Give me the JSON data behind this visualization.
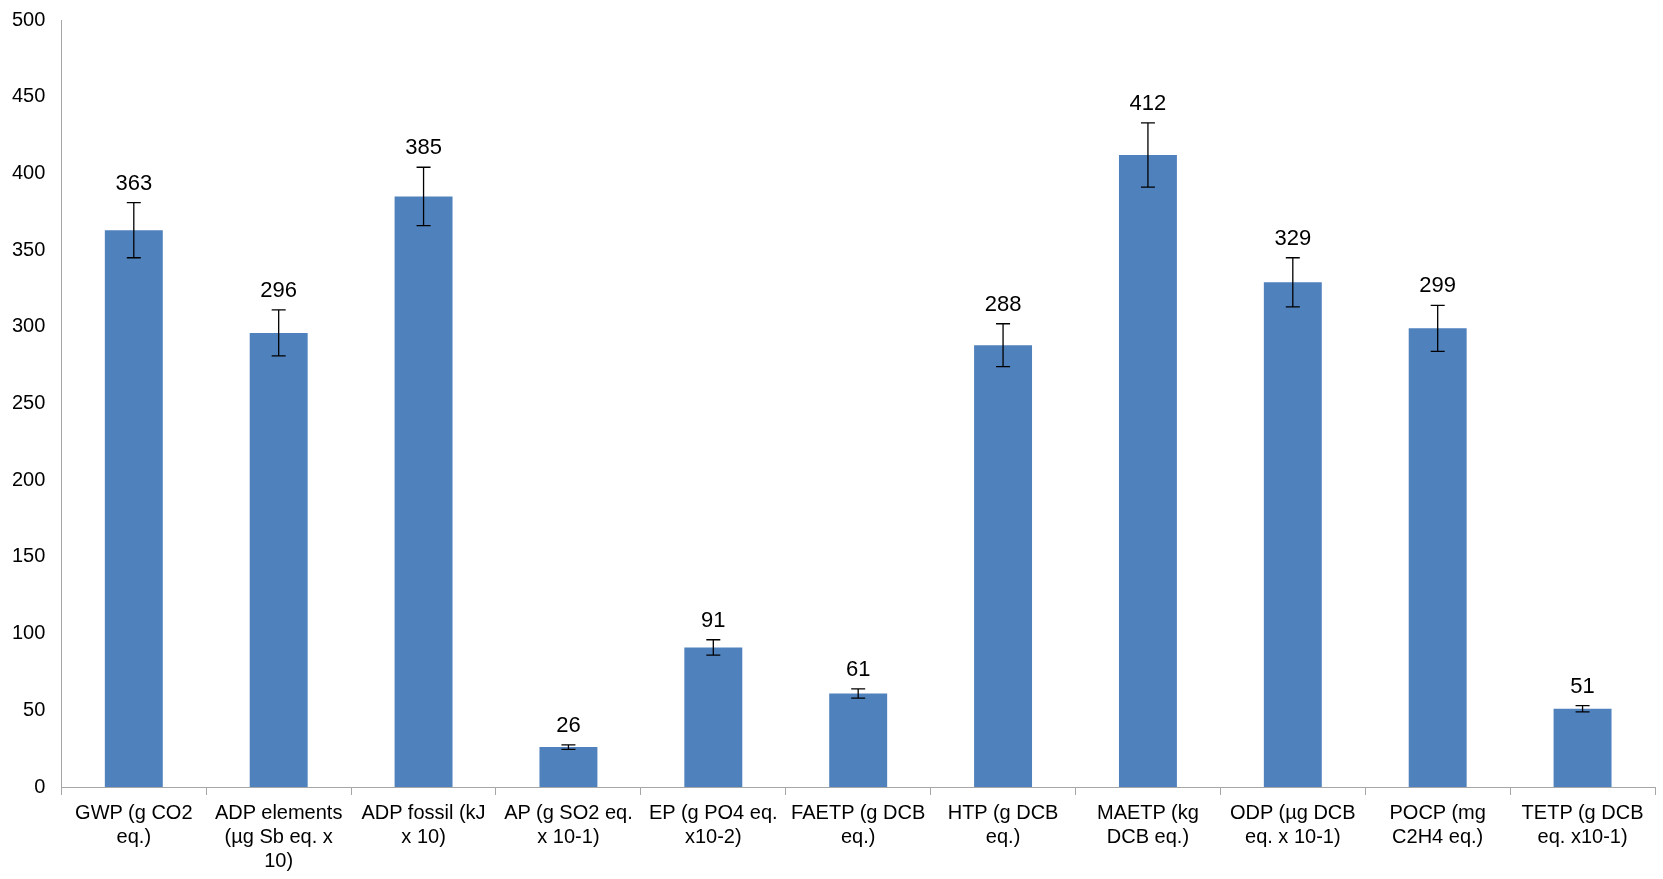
{
  "chart_data": {
    "type": "bar",
    "categories": [
      "GWP (g CO2 eq.)",
      "ADP elements (µg Sb eq. x 10)",
      "ADP fossil (kJ x 10)",
      "AP (g SO2 eq. x 10-1)",
      "EP (g PO4 eq. x10-2)",
      "FAETP (g DCB eq.)",
      "HTP (g DCB eq.)",
      "MAETP (kg DCB eq.)",
      "ODP (µg DCB eq. x 10-1)",
      "POCP (mg C2H4 eq.)",
      "TETP (g DCB eq. x10-1)"
    ],
    "values": [
      363,
      296,
      385,
      26,
      91,
      61,
      288,
      412,
      329,
      299,
      51
    ],
    "errors": [
      18,
      15,
      19,
      1.5,
      5,
      3,
      14,
      21,
      16,
      15,
      2
    ],
    "color": "#4f81bd",
    "ylim": [
      0,
      500
    ],
    "yticks": [
      0,
      50,
      100,
      150,
      200,
      250,
      300,
      350,
      400,
      450,
      500
    ],
    "data_labels": true,
    "grid": false,
    "legend": false
  }
}
